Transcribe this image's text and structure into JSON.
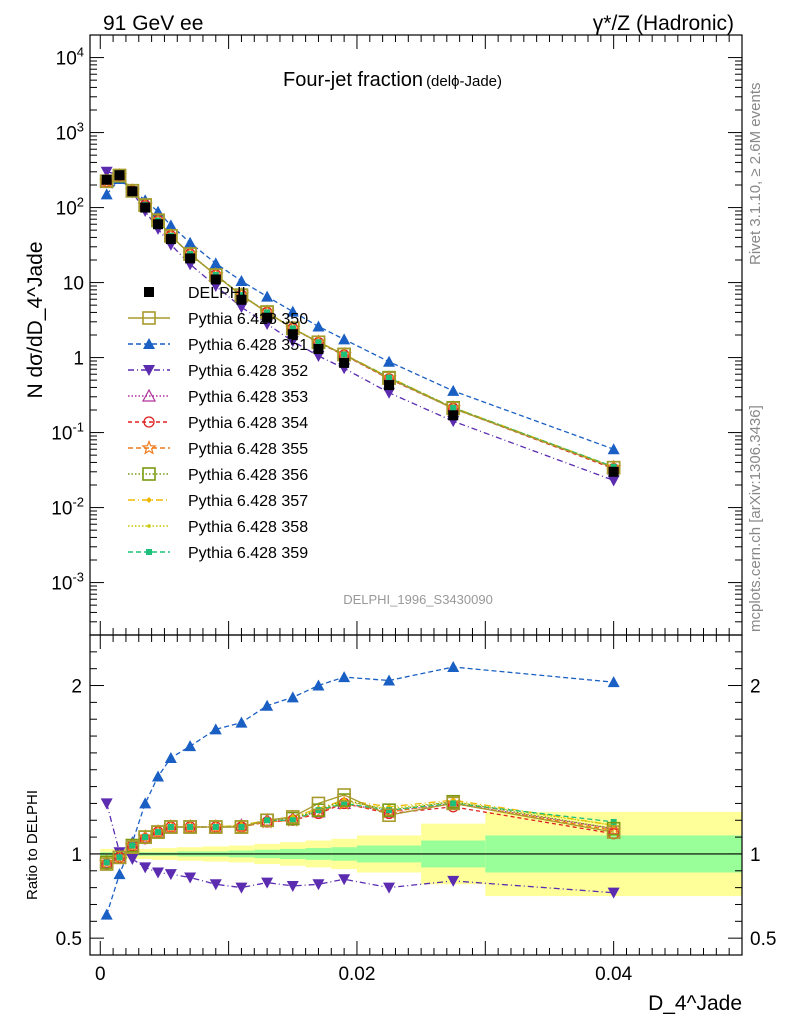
{
  "header": {
    "left": "91 GeV ee",
    "right": "γ*/Z (Hadronic)"
  },
  "main_title": "Four-jet fraction",
  "main_title_small": "(delϕ-Jade)",
  "watermark": "DELPHI_1996_S3430090",
  "side_label_top": "Rivet 3.1.10, ≥ 2.6M events",
  "side_label_bottom": "mcplots.cern.ch [arXiv:1306.3436]",
  "ylabel_top": "N dσ/dD_4^Jade",
  "ylabel_bottom": "Ratio to DELPHI",
  "xlabel": "D_4^Jade",
  "colors": {
    "data": "#000000",
    "350": "#a89a2c",
    "351": "#1a5fc4",
    "352": "#5b2bb0",
    "353": "#b0309a",
    "354": "#e02020",
    "355": "#f07a1a",
    "356": "#7a9a10",
    "357": "#f0b800",
    "358": "#c8c800",
    "359": "#1cc07a",
    "band_inner": "#99ff99",
    "band_outer": "#ffff99"
  },
  "chart_data": [
    {
      "type": "scatter",
      "yscale": "log",
      "ylim": [
        0.0002,
        20000
      ],
      "xlim": [
        -0.0008,
        0.05
      ],
      "y_tick_labels": [
        "10^-3",
        "10^-2",
        "10^-1",
        "1",
        "10",
        "10^2",
        "10^3",
        "10^4"
      ],
      "x": [
        0.0005,
        0.0015,
        0.0025,
        0.0035,
        0.0045,
        0.0055,
        0.007,
        0.009,
        0.011,
        0.013,
        0.015,
        0.017,
        0.019,
        0.0225,
        0.0275,
        0.04
      ],
      "series": [
        {
          "name": "DELPHI",
          "key": "data",
          "values": [
            235,
            270,
            165,
            100,
            60,
            38,
            21,
            11,
            5.9,
            3.4,
            2.05,
            1.3,
            0.85,
            0.43,
            0.17,
            0.03
          ]
        },
        {
          "name": "Pythia 6.428 350",
          "key": "350",
          "values": [
            225,
            268,
            168,
            108,
            68,
            42,
            24,
            12.5,
            6.7,
            4.0,
            2.45,
            1.6,
            1.1,
            0.53,
            0.21,
            0.034
          ]
        },
        {
          "name": "Pythia 6.428 351",
          "key": "351",
          "values": [
            150,
            240,
            170,
            125,
            88,
            58,
            34,
            18,
            10.5,
            6.5,
            4.1,
            2.6,
            1.75,
            0.88,
            0.36,
            0.06
          ]
        },
        {
          "name": "Pythia 6.428 352",
          "key": "352",
          "values": [
            300,
            275,
            160,
            90,
            52,
            32,
            17.5,
            9.0,
            4.7,
            2.8,
            1.65,
            1.05,
            0.72,
            0.34,
            0.142,
            0.023
          ]
        },
        {
          "name": "Pythia 6.428 353",
          "key": "353",
          "values": [
            223,
            265,
            166,
            107,
            67,
            42,
            24,
            12.6,
            6.8,
            4.0,
            2.45,
            1.6,
            1.09,
            0.53,
            0.213,
            0.034
          ]
        },
        {
          "name": "Pythia 6.428 354",
          "key": "354",
          "values": [
            222,
            264,
            166,
            107,
            67,
            42,
            24,
            12.6,
            6.8,
            4.0,
            2.45,
            1.58,
            1.08,
            0.52,
            0.21,
            0.033
          ]
        },
        {
          "name": "Pythia 6.428 355",
          "key": "355",
          "values": [
            223,
            264,
            166,
            107,
            67,
            42,
            24,
            12.6,
            6.8,
            4.0,
            2.45,
            1.6,
            1.09,
            0.53,
            0.212,
            0.034
          ]
        },
        {
          "name": "Pythia 6.428 356",
          "key": "356",
          "values": [
            224,
            266,
            167,
            108,
            67,
            42,
            24,
            12.6,
            6.8,
            4.05,
            2.46,
            1.6,
            1.1,
            0.54,
            0.214,
            0.034
          ]
        },
        {
          "name": "Pythia 6.428 357",
          "key": "357",
          "values": [
            224,
            266,
            167,
            108,
            67,
            42,
            24,
            12.6,
            6.8,
            4.0,
            2.46,
            1.62,
            1.11,
            0.55,
            0.216,
            0.035
          ]
        },
        {
          "name": "Pythia 6.428 358",
          "key": "358",
          "values": [
            224,
            266,
            167,
            108,
            67,
            42,
            24,
            12.6,
            6.8,
            4.0,
            2.46,
            1.62,
            1.1,
            0.54,
            0.215,
            0.035
          ]
        },
        {
          "name": "Pythia 6.428 359",
          "key": "359",
          "values": [
            224,
            266,
            167,
            108,
            67,
            42,
            24,
            12.6,
            6.8,
            4.0,
            2.45,
            1.6,
            1.1,
            0.54,
            0.214,
            0.035
          ]
        }
      ]
    },
    {
      "type": "scatter",
      "ylim": [
        0.4,
        2.3
      ],
      "xlim": [
        -0.0008,
        0.05
      ],
      "y_ticks": [
        0.5,
        1,
        2
      ],
      "x_ticks": [
        0,
        0.02,
        0.04
      ],
      "band_edges": [
        0,
        0.001,
        0.002,
        0.003,
        0.004,
        0.005,
        0.006,
        0.008,
        0.01,
        0.012,
        0.014,
        0.016,
        0.018,
        0.02,
        0.025,
        0.03,
        0.05
      ],
      "band_inner": [
        0.01,
        0.01,
        0.01,
        0.01,
        0.01,
        0.01,
        0.015,
        0.015,
        0.02,
        0.025,
        0.03,
        0.035,
        0.04,
        0.05,
        0.08,
        0.11
      ],
      "band_outer": [
        0.03,
        0.03,
        0.03,
        0.03,
        0.035,
        0.035,
        0.04,
        0.045,
        0.05,
        0.06,
        0.07,
        0.08,
        0.09,
        0.11,
        0.18,
        0.25
      ],
      "x": [
        0.0005,
        0.0015,
        0.0025,
        0.0035,
        0.0045,
        0.0055,
        0.007,
        0.009,
        0.011,
        0.013,
        0.015,
        0.017,
        0.019,
        0.0225,
        0.0275,
        0.04
      ],
      "series": [
        {
          "name": "Pythia 6.428 350",
          "key": "350",
          "values": [
            0.94,
            0.98,
            1.04,
            1.1,
            1.13,
            1.16,
            1.16,
            1.16,
            1.16,
            1.2,
            1.22,
            1.3,
            1.35,
            1.23,
            1.3,
            1.13
          ]
        },
        {
          "name": "Pythia 6.428 351",
          "key": "351",
          "values": [
            0.64,
            0.88,
            1.07,
            1.3,
            1.46,
            1.57,
            1.64,
            1.74,
            1.78,
            1.88,
            1.93,
            2.0,
            2.05,
            2.03,
            2.11,
            2.02
          ]
        },
        {
          "name": "Pythia 6.428 352",
          "key": "352",
          "values": [
            1.3,
            1.01,
            0.97,
            0.92,
            0.89,
            0.88,
            0.86,
            0.82,
            0.8,
            0.83,
            0.81,
            0.82,
            0.85,
            0.8,
            0.84,
            0.77
          ]
        },
        {
          "name": "Pythia 6.428 353",
          "key": "353",
          "values": [
            0.95,
            0.98,
            1.05,
            1.1,
            1.13,
            1.16,
            1.16,
            1.16,
            1.17,
            1.2,
            1.21,
            1.25,
            1.3,
            1.25,
            1.3,
            1.15
          ]
        },
        {
          "name": "Pythia 6.428 354",
          "key": "354",
          "values": [
            0.94,
            0.98,
            1.05,
            1.09,
            1.13,
            1.16,
            1.16,
            1.16,
            1.16,
            1.19,
            1.2,
            1.24,
            1.3,
            1.24,
            1.28,
            1.12
          ]
        },
        {
          "name": "Pythia 6.428 355",
          "key": "355",
          "values": [
            0.95,
            0.98,
            1.05,
            1.1,
            1.13,
            1.16,
            1.16,
            1.16,
            1.16,
            1.19,
            1.2,
            1.25,
            1.3,
            1.25,
            1.3,
            1.14
          ]
        },
        {
          "name": "Pythia 6.428 356",
          "key": "356",
          "values": [
            0.95,
            0.98,
            1.05,
            1.1,
            1.13,
            1.16,
            1.16,
            1.16,
            1.16,
            1.2,
            1.21,
            1.26,
            1.32,
            1.26,
            1.31,
            1.15
          ]
        },
        {
          "name": "Pythia 6.428 357",
          "key": "357",
          "values": [
            0.95,
            0.98,
            1.05,
            1.1,
            1.13,
            1.16,
            1.16,
            1.16,
            1.17,
            1.2,
            1.22,
            1.27,
            1.32,
            1.28,
            1.32,
            1.17
          ]
        },
        {
          "name": "Pythia 6.428 358",
          "key": "358",
          "values": [
            0.95,
            0.98,
            1.05,
            1.1,
            1.13,
            1.16,
            1.16,
            1.16,
            1.17,
            1.2,
            1.22,
            1.26,
            1.31,
            1.27,
            1.31,
            1.17
          ]
        },
        {
          "name": "Pythia 6.428 359",
          "key": "359",
          "values": [
            0.95,
            0.98,
            1.05,
            1.1,
            1.13,
            1.16,
            1.16,
            1.16,
            1.16,
            1.2,
            1.2,
            1.26,
            1.3,
            1.26,
            1.3,
            1.19
          ]
        }
      ]
    }
  ]
}
